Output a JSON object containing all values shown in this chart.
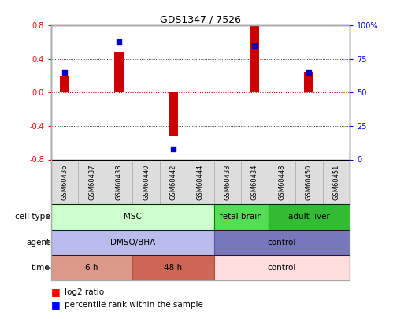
{
  "title": "GDS1347 / 7526",
  "samples": [
    "GSM60436",
    "GSM60437",
    "GSM60438",
    "GSM60440",
    "GSM60442",
    "GSM60444",
    "GSM60433",
    "GSM60434",
    "GSM60448",
    "GSM60450",
    "GSM60451"
  ],
  "log2_ratio": [
    0.2,
    0.0,
    0.48,
    0.0,
    -0.52,
    0.0,
    0.0,
    0.8,
    0.0,
    0.25,
    0.0
  ],
  "percentile_rank": [
    65,
    0,
    88,
    0,
    8,
    0,
    0,
    85,
    0,
    65,
    0
  ],
  "ylim": [
    -0.8,
    0.8
  ],
  "yticks_left": [
    -0.8,
    -0.4,
    0.0,
    0.4,
    0.8
  ],
  "yticks_right_vals": [
    0,
    25,
    50,
    75,
    100
  ],
  "yticks_right_labels": [
    "0",
    "25",
    "50",
    "75",
    "100%"
  ],
  "bar_color": "#cc0000",
  "dot_color": "#0000cc",
  "zero_line_color": "#cc0000",
  "grid_color": "#000000",
  "cell_type_groups": [
    {
      "label": "MSC",
      "start": 0,
      "end": 6,
      "color": "#ccffcc",
      "border_color": "#008800"
    },
    {
      "label": "fetal brain",
      "start": 6,
      "end": 8,
      "color": "#55dd55",
      "border_color": "#008800"
    },
    {
      "label": "adult liver",
      "start": 8,
      "end": 11,
      "color": "#33bb33",
      "border_color": "#008800"
    }
  ],
  "agent_groups": [
    {
      "label": "DMSO/BHA",
      "start": 0,
      "end": 6,
      "color": "#bbbbee",
      "border_color": "#5555aa"
    },
    {
      "label": "control",
      "start": 6,
      "end": 11,
      "color": "#7777bb",
      "border_color": "#5555aa"
    }
  ],
  "time_groups": [
    {
      "label": "6 h",
      "start": 0,
      "end": 3,
      "color": "#dd9988",
      "border_color": "#aa5544"
    },
    {
      "label": "48 h",
      "start": 3,
      "end": 6,
      "color": "#cc6655",
      "border_color": "#aa5544"
    },
    {
      "label": "control",
      "start": 6,
      "end": 11,
      "color": "#ffdddd",
      "border_color": "#aa5544"
    }
  ],
  "legend_red": "log2 ratio",
  "legend_blue": "percentile rank within the sample",
  "bar_width": 0.35,
  "dot_size": 25,
  "tick_label_bg": "#dddddd",
  "tick_label_border": "#aaaaaa"
}
